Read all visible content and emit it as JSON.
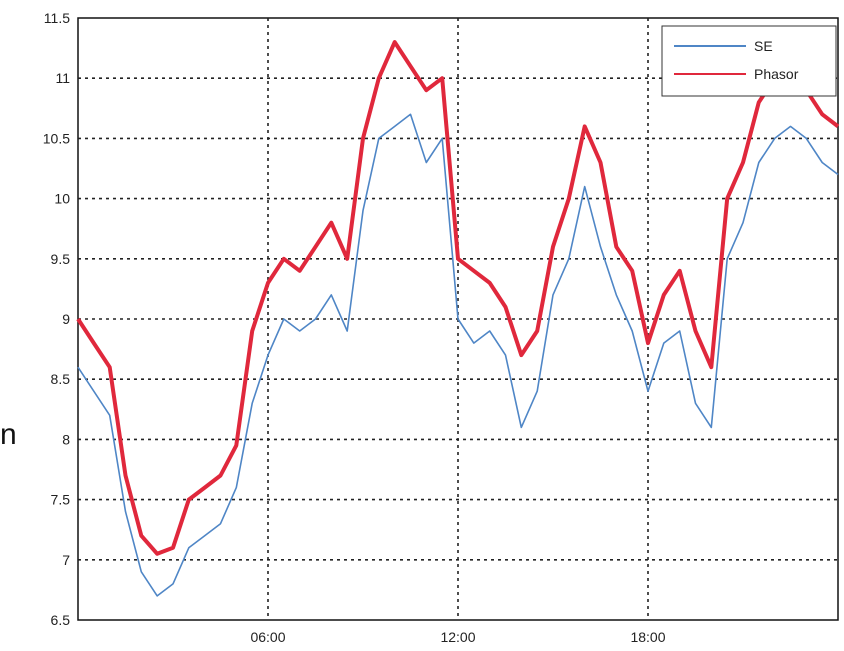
{
  "side_glyph": "n",
  "colors": {
    "se": "#4f86c6",
    "phasor": "#e0283c",
    "grid": "#222222",
    "axis": "#111111"
  },
  "chart_data": {
    "type": "line",
    "title": "",
    "xlabel": "",
    "ylabel": "",
    "xlim": [
      0,
      24
    ],
    "ylim": [
      6.5,
      11.5
    ],
    "xticks": [
      {
        "value": 6,
        "label": "06:00"
      },
      {
        "value": 12,
        "label": "12:00"
      },
      {
        "value": 18,
        "label": "18:00"
      }
    ],
    "yticks": [
      {
        "value": 6.5,
        "label": "6.5"
      },
      {
        "value": 7,
        "label": "7"
      },
      {
        "value": 7.5,
        "label": "7.5"
      },
      {
        "value": 8,
        "label": "8"
      },
      {
        "value": 8.5,
        "label": "8.5"
      },
      {
        "value": 9,
        "label": "9"
      },
      {
        "value": 9.5,
        "label": "9.5"
      },
      {
        "value": 10,
        "label": "10"
      },
      {
        "value": 10.5,
        "label": "10.5"
      },
      {
        "value": 11,
        "label": "11"
      },
      {
        "value": 11.5,
        "label": "11.5"
      }
    ],
    "grid": true,
    "legend_position": "top-right",
    "series": [
      {
        "name": "SE",
        "color": "#4f86c6",
        "x": [
          0,
          0.5,
          1,
          1.5,
          2,
          2.5,
          3,
          3.5,
          4,
          4.5,
          5,
          5.5,
          6,
          6.5,
          7,
          7.5,
          8,
          8.5,
          9,
          9.5,
          10,
          10.5,
          11,
          11.5,
          12,
          12.5,
          13,
          13.5,
          14,
          14.5,
          15,
          15.5,
          16,
          16.5,
          17,
          17.5,
          18,
          18.5,
          19,
          19.5,
          20,
          20.5,
          21,
          21.5,
          22,
          22.5,
          23,
          23.5,
          24
        ],
        "values": [
          8.6,
          8.4,
          8.2,
          7.4,
          6.9,
          6.7,
          6.8,
          7.1,
          7.2,
          7.3,
          7.6,
          8.3,
          8.7,
          9.0,
          8.9,
          9.0,
          9.2,
          8.9,
          9.9,
          10.5,
          10.6,
          10.7,
          10.3,
          10.5,
          9.0,
          8.8,
          8.9,
          8.7,
          8.1,
          8.4,
          9.2,
          9.5,
          10.1,
          9.6,
          9.2,
          8.9,
          8.4,
          8.8,
          8.9,
          8.3,
          8.1,
          9.5,
          9.8,
          10.3,
          10.5,
          10.6,
          10.5,
          10.3,
          10.2
        ]
      },
      {
        "name": "Phasor",
        "color": "#e0283c",
        "x": [
          0,
          0.5,
          1,
          1.5,
          2,
          2.5,
          3,
          3.5,
          4,
          4.5,
          5,
          5.5,
          6,
          6.5,
          7,
          7.5,
          8,
          8.5,
          9,
          9.5,
          10,
          10.5,
          11,
          11.5,
          12,
          12.5,
          13,
          13.5,
          14,
          14.5,
          15,
          15.5,
          16,
          16.5,
          17,
          17.5,
          18,
          18.5,
          19,
          19.5,
          20,
          20.5,
          21,
          21.5,
          22,
          22.5,
          23,
          23.5,
          24
        ],
        "values": [
          9.0,
          8.8,
          8.6,
          7.7,
          7.2,
          7.05,
          7.1,
          7.5,
          7.6,
          7.7,
          7.95,
          8.9,
          9.3,
          9.5,
          9.4,
          9.6,
          9.8,
          9.5,
          10.5,
          11.0,
          11.3,
          11.1,
          10.9,
          11.0,
          9.5,
          9.4,
          9.3,
          9.1,
          8.7,
          8.9,
          9.6,
          10.0,
          10.6,
          10.3,
          9.6,
          9.4,
          8.8,
          9.2,
          9.4,
          8.9,
          8.6,
          10.0,
          10.3,
          10.8,
          11.0,
          11.1,
          10.9,
          10.7,
          10.6
        ]
      }
    ]
  }
}
